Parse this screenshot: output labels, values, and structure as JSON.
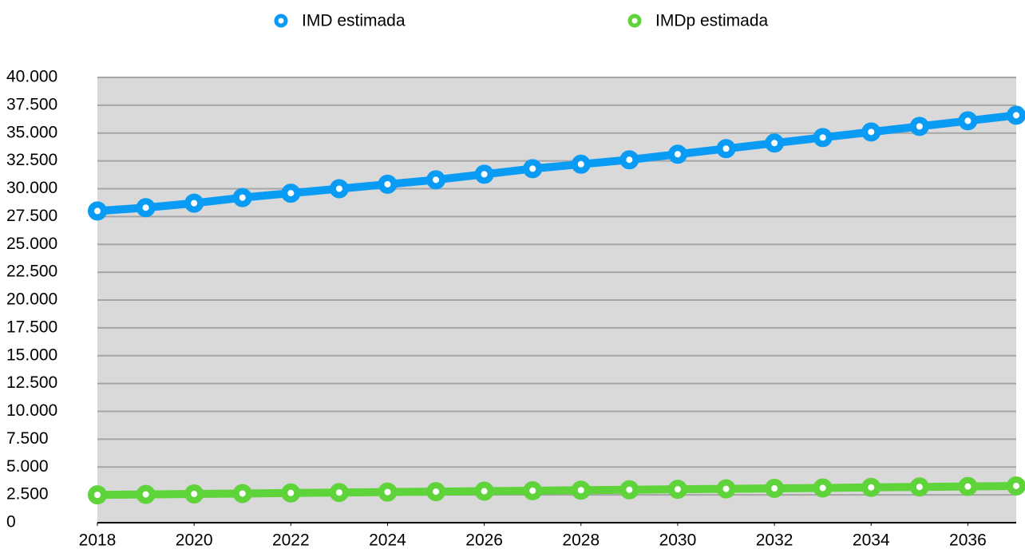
{
  "chart_data": {
    "type": "line",
    "x": [
      2018,
      2019,
      2020,
      2021,
      2022,
      2023,
      2024,
      2025,
      2026,
      2027,
      2028,
      2029,
      2030,
      2031,
      2032,
      2033,
      2034,
      2035,
      2036,
      2037
    ],
    "series": [
      {
        "name": "IMD estimada",
        "color": "#0a9bf5",
        "values": [
          28000,
          28300,
          28700,
          29200,
          29600,
          30000,
          30400,
          30800,
          31300,
          31800,
          32200,
          32600,
          33100,
          33600,
          34100,
          34600,
          35100,
          35600,
          36100,
          36600
        ]
      },
      {
        "name": "IMDp estimada",
        "color": "#5fd33a",
        "values": [
          2500,
          2540,
          2580,
          2620,
          2670,
          2710,
          2750,
          2790,
          2830,
          2870,
          2920,
          2960,
          3000,
          3040,
          3080,
          3120,
          3170,
          3210,
          3250,
          3300
        ]
      }
    ],
    "xlim": [
      2018,
      2037
    ],
    "xticks": [
      2018,
      2020,
      2022,
      2024,
      2026,
      2028,
      2030,
      2032,
      2034,
      2036
    ],
    "ylim": [
      0,
      40000
    ],
    "yticks": [
      0,
      {
        "value": 2500,
        "label": "2.500"
      },
      {
        "value": 5000,
        "label": "5.000"
      },
      {
        "value": 7500,
        "label": "7.500"
      },
      {
        "value": 10000,
        "label": "10.000"
      },
      {
        "value": 12500,
        "label": "12.500"
      },
      {
        "value": 15000,
        "label": "15.000"
      },
      {
        "value": 17500,
        "label": "17.500"
      },
      {
        "value": 20000,
        "label": "20.000"
      },
      {
        "value": 22500,
        "label": "22.500"
      },
      {
        "value": 25000,
        "label": "25.000"
      },
      {
        "value": 27500,
        "label": "27.500"
      },
      {
        "value": 30000,
        "label": "30.000"
      },
      {
        "value": 32500,
        "label": "32.500"
      },
      {
        "value": 35000,
        "label": "35.000"
      },
      {
        "value": 37500,
        "label": "37.500"
      },
      {
        "value": 40000,
        "label": "40.000"
      }
    ],
    "grid": true,
    "legend": "top"
  }
}
